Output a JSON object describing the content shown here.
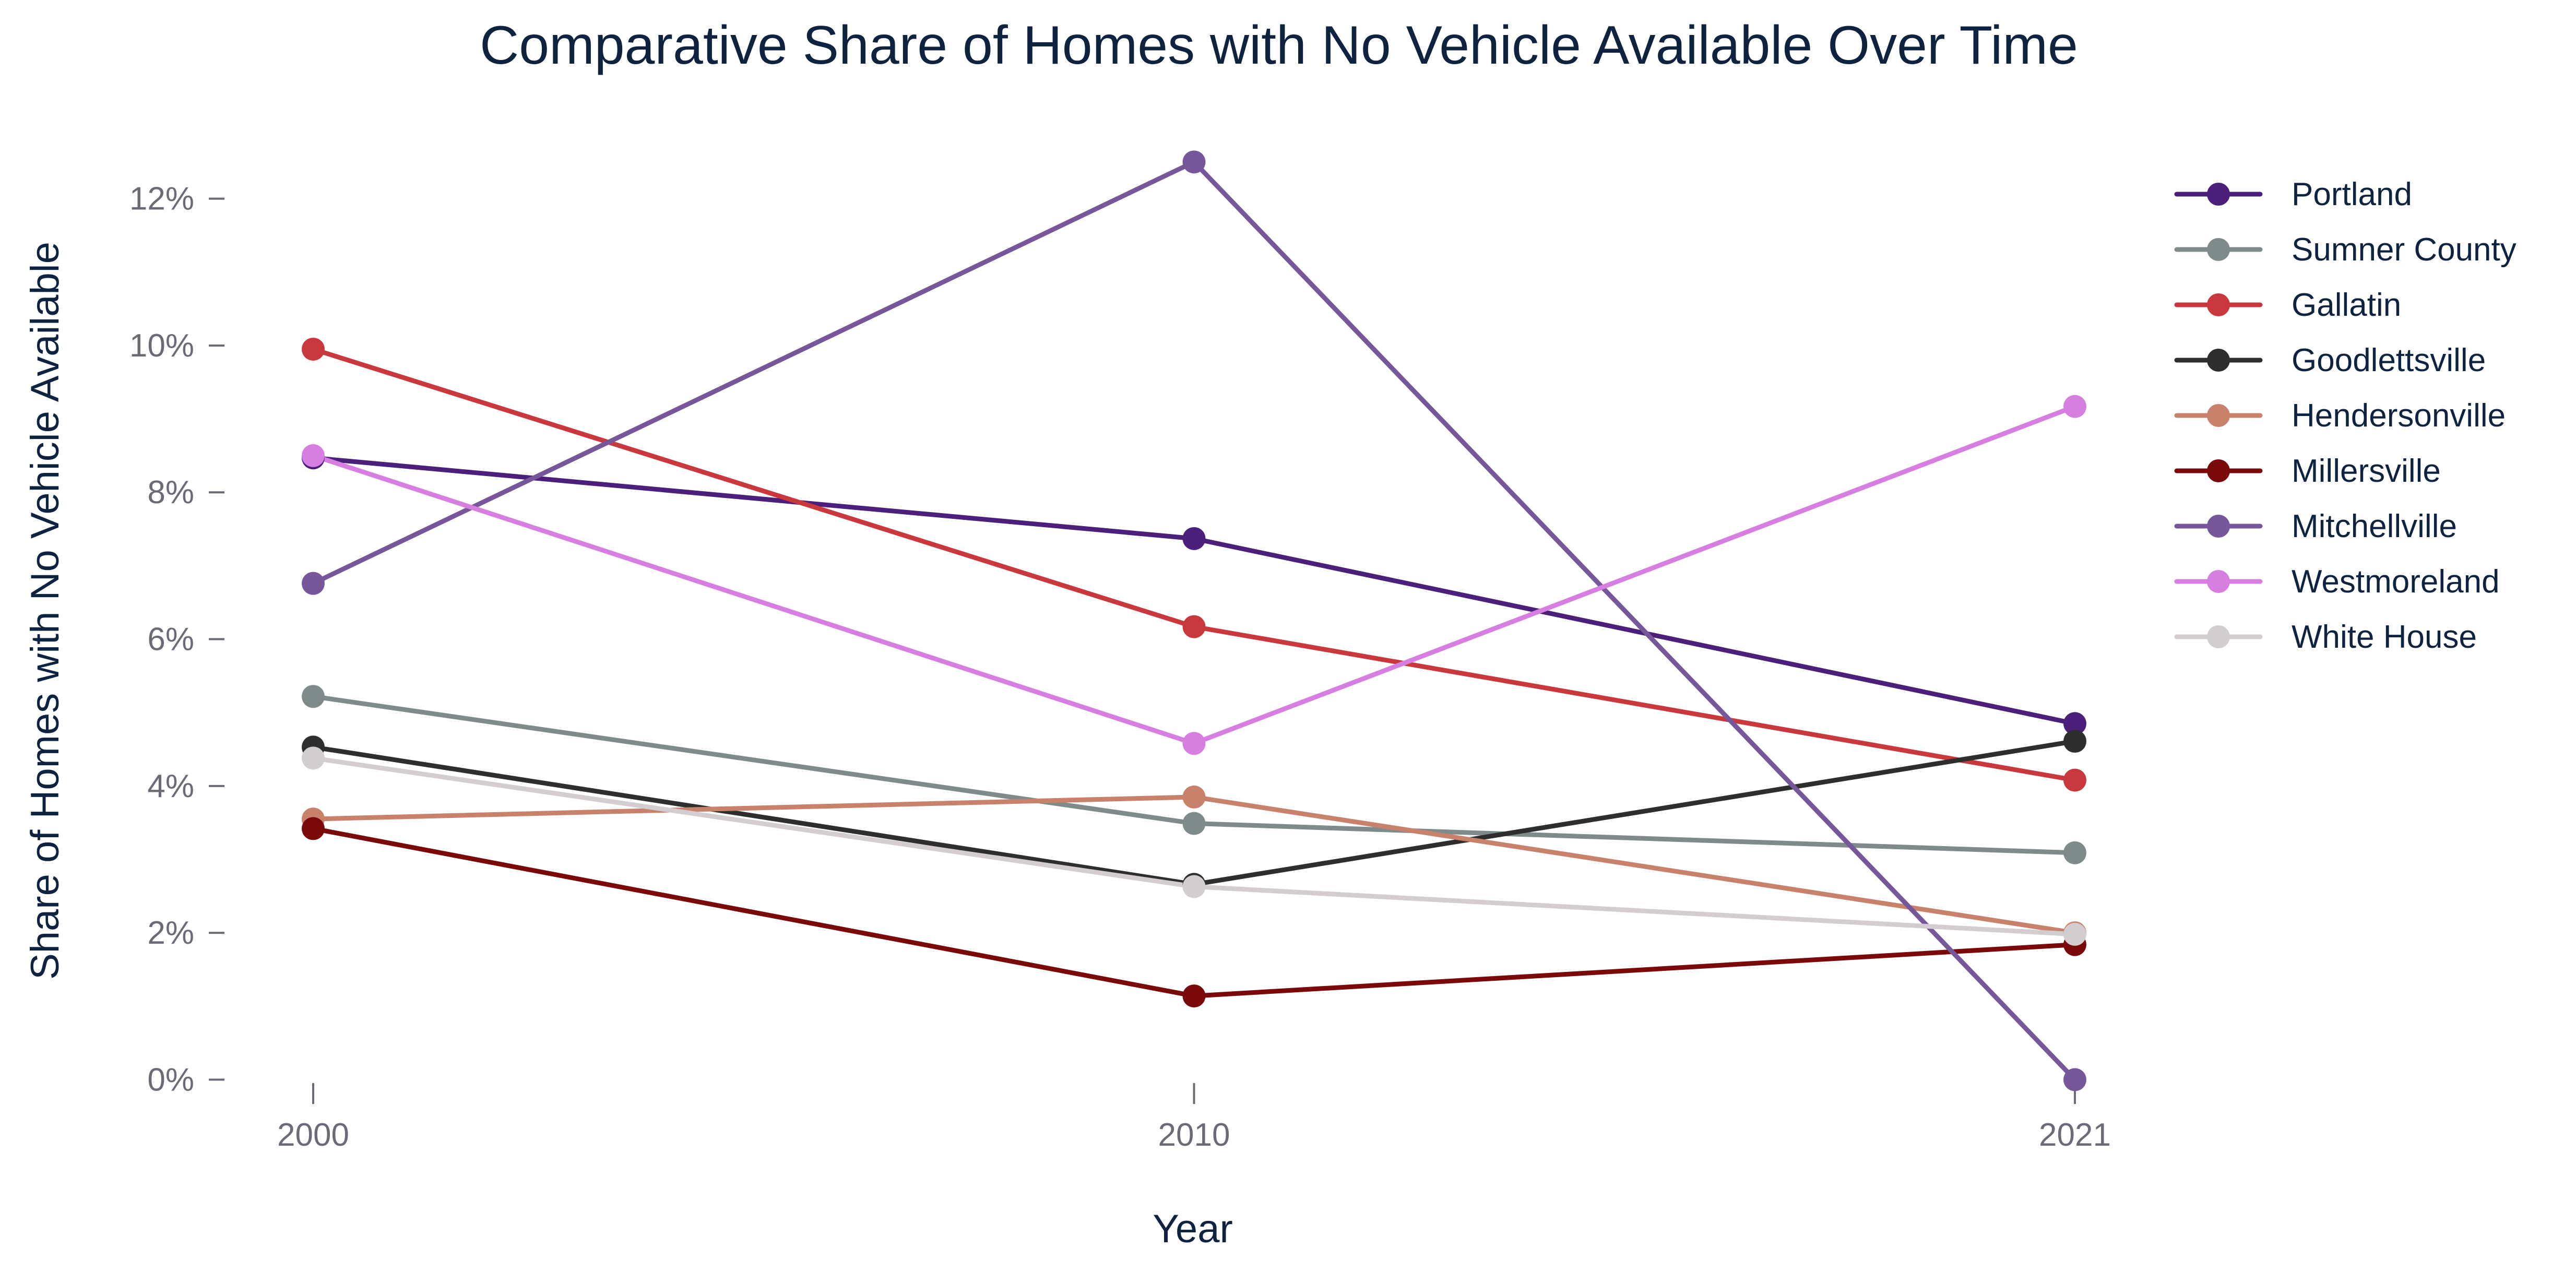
{
  "chart_data": {
    "type": "line",
    "title": "Comparative Share of Homes with No Vehicle Available Over Time",
    "xlabel": "Year",
    "ylabel": "Share of Homes with No Vehicle Available",
    "x": [
      "2000",
      "2010",
      "2021"
    ],
    "y_ticks": [
      {
        "value": 0,
        "label": "0%"
      },
      {
        "value": 2,
        "label": "2%"
      },
      {
        "value": 4,
        "label": "4%"
      },
      {
        "value": 6,
        "label": "6%"
      },
      {
        "value": 8,
        "label": "8%"
      },
      {
        "value": 10,
        "label": "10%"
      },
      {
        "value": 12,
        "label": "12%"
      }
    ],
    "ylim": [
      -0.9,
      13.0
    ],
    "y_unit": "%",
    "grid": false,
    "legend_position": "right",
    "series": [
      {
        "name": "Portland",
        "color": "#4b1f7a",
        "values": [
          8.47,
          7.37,
          4.85
        ]
      },
      {
        "name": "Sumner County",
        "color": "#7f8b8b",
        "values": [
          5.22,
          3.49,
          3.09
        ]
      },
      {
        "name": "Gallatin",
        "color": "#c9383d",
        "values": [
          9.95,
          6.17,
          4.08
        ]
      },
      {
        "name": "Goodlettsville",
        "color": "#2e2e2e",
        "values": [
          4.53,
          2.66,
          4.61
        ]
      },
      {
        "name": "Hendersonville",
        "color": "#c8826c",
        "values": [
          3.55,
          3.85,
          2.0
        ]
      },
      {
        "name": "Millersville",
        "color": "#7a0a0a",
        "values": [
          3.42,
          1.14,
          1.84
        ]
      },
      {
        "name": "Mitchellville",
        "color": "#76579a",
        "values": [
          6.76,
          12.5,
          0.0
        ]
      },
      {
        "name": "Westmoreland",
        "color": "#d67fe0",
        "values": [
          8.5,
          4.58,
          9.17
        ]
      },
      {
        "name": "White House",
        "color": "#d3cdd1",
        "values": [
          4.38,
          2.63,
          1.98
        ]
      }
    ]
  }
}
